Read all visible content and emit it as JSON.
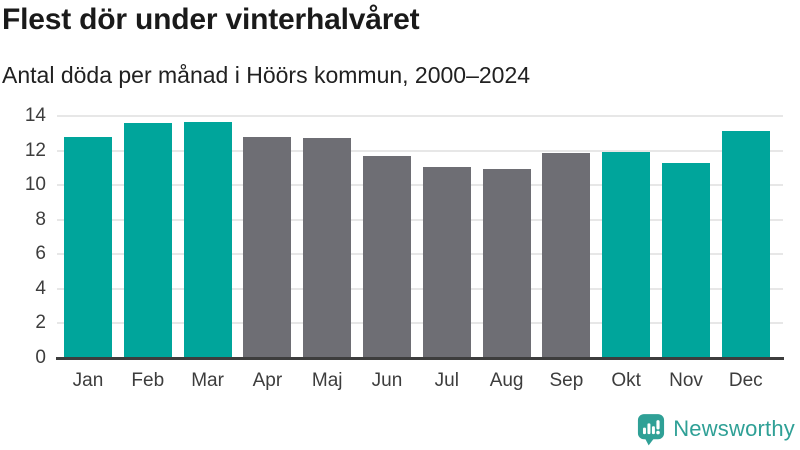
{
  "chart_data": {
    "type": "bar",
    "title": "Flest dör under vinterhalvåret",
    "subtitle": "Antal döda per månad i Höörs kommun, 2000–2024",
    "categories": [
      "Jan",
      "Feb",
      "Mar",
      "Apr",
      "Maj",
      "Jun",
      "Jul",
      "Aug",
      "Sep",
      "Okt",
      "Nov",
      "Dec"
    ],
    "values": [
      12.7,
      13.55,
      13.6,
      12.75,
      12.65,
      11.6,
      11.0,
      10.9,
      11.8,
      11.85,
      11.2,
      13.05
    ],
    "highlighted": [
      true,
      true,
      true,
      false,
      false,
      false,
      false,
      false,
      false,
      true,
      true,
      true
    ],
    "xlabel": "",
    "ylabel": "",
    "ylim": [
      0,
      14
    ],
    "yticks": [
      0,
      2,
      4,
      6,
      8,
      10,
      12,
      14
    ],
    "grid": true,
    "legend": "none",
    "colors": {
      "highlight": "#00a59b",
      "muted": "#6e6e74",
      "gridline": "#e7e7e7",
      "axis": "#3d3d3d",
      "tick_text": "#3d3d3d"
    }
  },
  "footer": {
    "brand": "Newsworthy",
    "brand_color": "#2fa096"
  }
}
